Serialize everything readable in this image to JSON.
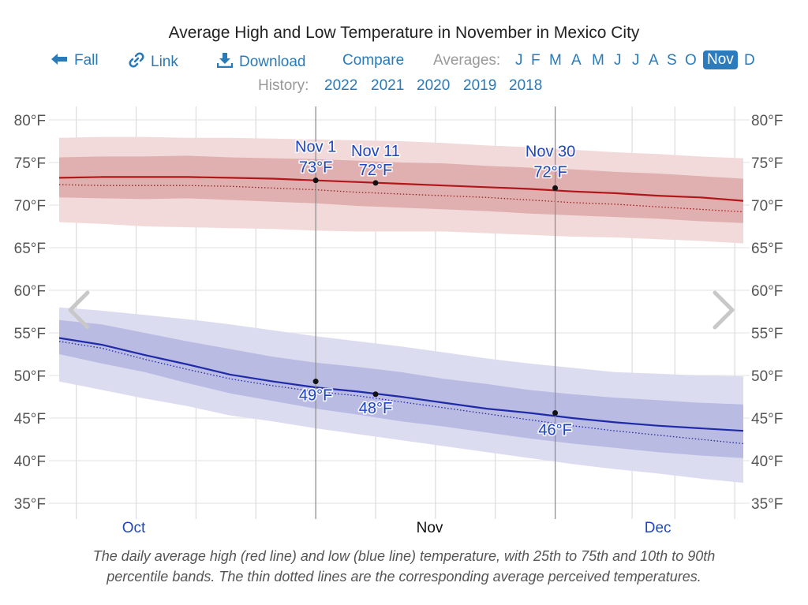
{
  "title": "Average High and Low Temperature in November in Mexico City",
  "nav": {
    "fall_label": "Fall",
    "link_label": "Link",
    "download_label": "Download",
    "compare_label": "Compare",
    "averages_label": "Averages:",
    "months": [
      "J",
      "F",
      "M",
      "A",
      "M",
      "J",
      "J",
      "A",
      "S",
      "O",
      "Nov",
      "D"
    ],
    "selected_month": "Nov",
    "icons": {
      "fall": "arrow-left-icon",
      "link": "link-icon",
      "download": "download-icon"
    }
  },
  "history": {
    "label": "History:",
    "years": [
      "2022",
      "2021",
      "2020",
      "2019",
      "2018"
    ]
  },
  "carousel": {
    "prev": "chevron-left-icon",
    "next": "chevron-right-icon"
  },
  "caption_line1": "The daily average high (red line) and low (blue line) temperature, with 25th to 75th and 10th to 90th",
  "caption_line2": "percentile bands. The thin dotted lines are the corresponding average perceived temperatures.",
  "colors": {
    "high_line": "#b0161a",
    "high_band_inner": "#e0b0b0",
    "high_band_outer": "#f2dada",
    "low_line": "#1f2aa8",
    "low_band_inner": "#babbe3",
    "low_band_outer": "#dcdcf1",
    "annotation": "#1f48c0",
    "month_link": "#1f48c0",
    "accent": "#2c7bbd"
  },
  "chart_data": {
    "type": "line",
    "title": "Average High and Low Temperature in November in Mexico City",
    "ylabel": "",
    "y_unit": "°F",
    "ylim": [
      33,
      81
    ],
    "y_ticks": [
      80,
      75,
      70,
      65,
      60,
      55,
      50,
      45,
      40,
      35
    ],
    "y_tick_labels": [
      "80°F",
      "75°F",
      "70°F",
      "65°F",
      "60°F",
      "55°F",
      "50°F",
      "45°F",
      "40°F",
      "35°F"
    ],
    "x_unit": "day offset from Oct 1",
    "xlim": [
      -9.5,
      71
    ],
    "x_month_labels": [
      {
        "label": "Oct",
        "x": 0,
        "style": "link"
      },
      {
        "label": "Nov",
        "x": 31,
        "style": "current"
      },
      {
        "label": "Dec",
        "x": 61,
        "style": "link"
      }
    ],
    "x_gridlines": [
      -7,
      0,
      7,
      14,
      21,
      28,
      35,
      42,
      49,
      58,
      63,
      70
    ],
    "grid": true,
    "marker_lines": [
      21,
      49
    ],
    "x": [
      -9,
      -4,
      1,
      6,
      11,
      16,
      21,
      26,
      31,
      36,
      41,
      46,
      51,
      56,
      61,
      66,
      71
    ],
    "series": [
      {
        "name": "Average High",
        "role": "high_line",
        "values": [
          73.2,
          73.3,
          73.3,
          73.3,
          73.2,
          73.1,
          72.9,
          72.7,
          72.5,
          72.3,
          72.1,
          71.9,
          71.6,
          71.4,
          71.1,
          70.9,
          70.5
        ]
      },
      {
        "name": "High perceived",
        "role": "high_dotted",
        "values": [
          72.4,
          72.3,
          72.3,
          72.3,
          72.2,
          72.0,
          71.8,
          71.5,
          71.3,
          71.1,
          70.9,
          70.6,
          70.3,
          70.1,
          69.8,
          69.5,
          69.2
        ]
      },
      {
        "name": "High 25th pct",
        "role": "high_p25",
        "values": [
          70.9,
          70.8,
          70.7,
          70.8,
          70.6,
          70.4,
          70.2,
          69.9,
          69.7,
          69.5,
          69.3,
          69.0,
          68.8,
          68.6,
          68.4,
          68.1,
          67.9
        ]
      },
      {
        "name": "High 75th pct",
        "role": "high_p75",
        "values": [
          75.6,
          75.7,
          75.7,
          75.8,
          75.6,
          75.5,
          75.4,
          75.2,
          75.0,
          74.9,
          74.6,
          74.4,
          74.2,
          73.9,
          73.7,
          73.4,
          73.1
        ]
      },
      {
        "name": "High 10th pct",
        "role": "high_p10",
        "values": [
          68.0,
          67.8,
          67.5,
          67.4,
          67.3,
          67.2,
          67.0,
          66.9,
          66.9,
          66.9,
          66.7,
          66.5,
          66.3,
          66.2,
          66.0,
          65.8,
          65.5
        ]
      },
      {
        "name": "High 90th pct",
        "role": "high_p90",
        "values": [
          77.9,
          78.0,
          78.0,
          77.9,
          77.9,
          77.8,
          77.7,
          77.6,
          77.5,
          77.3,
          77.0,
          76.8,
          76.5,
          76.2,
          76.0,
          75.7,
          75.5
        ]
      },
      {
        "name": "Average Low",
        "role": "low_line",
        "values": [
          54.4,
          53.6,
          52.4,
          51.3,
          50.1,
          49.3,
          48.6,
          48.1,
          47.5,
          46.8,
          46.1,
          45.6,
          45.0,
          44.5,
          44.1,
          43.8,
          43.5
        ]
      },
      {
        "name": "Low perceived",
        "role": "low_dotted",
        "values": [
          54.0,
          53.2,
          51.9,
          50.7,
          49.6,
          48.8,
          48.1,
          47.6,
          46.9,
          46.2,
          45.5,
          44.8,
          44.1,
          43.5,
          43.0,
          42.5,
          42.0
        ]
      },
      {
        "name": "Low 25th pct",
        "role": "low_p25",
        "values": [
          52.5,
          51.4,
          50.4,
          49.1,
          47.9,
          47.0,
          46.1,
          45.4,
          44.6,
          44.0,
          43.3,
          42.6,
          42.0,
          41.5,
          41.0,
          40.6,
          40.3
        ]
      },
      {
        "name": "Low 75th pct",
        "role": "low_p75",
        "values": [
          56.5,
          56.0,
          55.0,
          54.0,
          53.1,
          52.2,
          51.5,
          51.0,
          50.4,
          49.6,
          49.0,
          48.3,
          47.8,
          47.4,
          47.1,
          46.8,
          46.6
        ]
      },
      {
        "name": "Low 10th pct",
        "role": "low_p10",
        "values": [
          49.3,
          48.3,
          47.3,
          46.4,
          45.3,
          44.6,
          43.8,
          43.1,
          42.4,
          41.7,
          41.0,
          40.3,
          39.6,
          39.0,
          38.5,
          37.9,
          37.4
        ]
      },
      {
        "name": "Low 90th pct",
        "role": "low_p90",
        "values": [
          58.0,
          57.6,
          57.1,
          56.6,
          56.0,
          55.3,
          54.6,
          54.0,
          53.4,
          52.7,
          52.0,
          51.4,
          50.9,
          50.4,
          50.2,
          50.0,
          49.9
        ]
      }
    ],
    "annotations": [
      {
        "date": "Nov 1",
        "x": 21,
        "high": 73,
        "low": 49,
        "high_label": "73°F",
        "low_label": "49°F",
        "high_y": 72.9,
        "low_y": 49.3
      },
      {
        "date": "Nov 11",
        "x": 28,
        "high": 72,
        "low": 48,
        "high_label": "72°F",
        "low_label": "48°F",
        "high_y": 72.6,
        "low_y": 47.8
      },
      {
        "date": "Nov 30",
        "x": 49,
        "high": 72,
        "low": 46,
        "high_label": "72°F",
        "low_label": "46°F",
        "high_y": 72.0,
        "low_y": 45.6
      }
    ]
  }
}
